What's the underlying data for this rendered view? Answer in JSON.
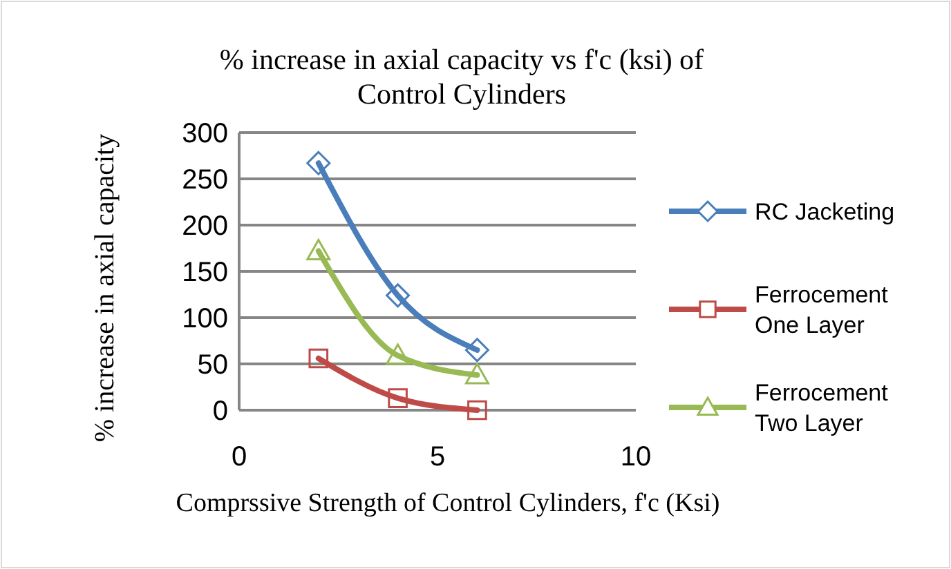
{
  "chart_data": {
    "type": "line",
    "title": "% increase in axial capacity vs f'c (ksi) of Control Cylinders",
    "xlabel": "Comprssive Strength of Control Cylinders, f'c (Ksi)",
    "ylabel": "% increase in axial capacity",
    "x": [
      2,
      4,
      6
    ],
    "series": [
      {
        "name": "RC Jacketing",
        "color": "#4a7ebb",
        "values": [
          267,
          124,
          65
        ],
        "marker": "diamond"
      },
      {
        "name": "Ferrocement One Layer",
        "color": "#be4b48",
        "values": [
          56,
          13,
          0
        ],
        "marker": "square"
      },
      {
        "name": "Ferrocement Two Layer",
        "color": "#98b954",
        "values": [
          172,
          59,
          38
        ],
        "marker": "triangle"
      }
    ],
    "xlim": [
      0,
      10
    ],
    "xticks": [
      0,
      5,
      10
    ],
    "ylim": [
      0,
      300
    ],
    "yticks": [
      0,
      50,
      100,
      150,
      200,
      250,
      300
    ],
    "grid": "y",
    "legend": "right"
  }
}
